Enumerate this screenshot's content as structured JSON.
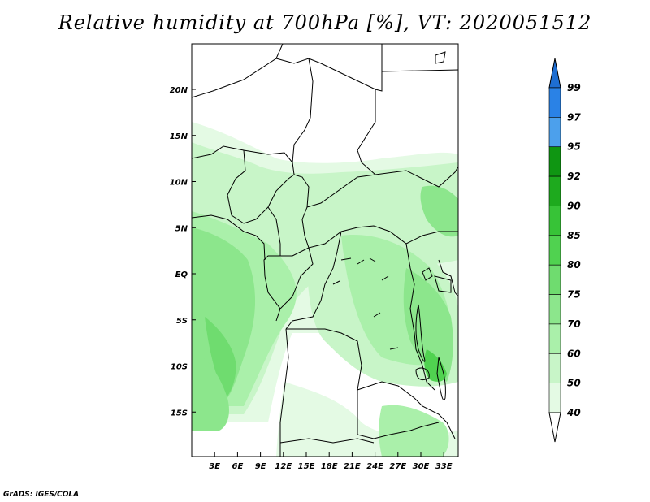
{
  "title": "Relative humidity at 700hPa [%], VT: 2020051512",
  "footer": "GrADS: IGES/COLA",
  "map": {
    "lat_ticks": [
      {
        "label": "20N",
        "lat": 20
      },
      {
        "label": "15N",
        "lat": 15
      },
      {
        "label": "10N",
        "lat": 10
      },
      {
        "label": "5N",
        "lat": 5
      },
      {
        "label": "EQ",
        "lat": 0
      },
      {
        "label": "5S",
        "lat": -5
      },
      {
        "label": "10S",
        "lat": -10
      },
      {
        "label": "15S",
        "lat": -15
      }
    ],
    "lon_ticks": [
      {
        "label": "3E",
        "lon": 3
      },
      {
        "label": "6E",
        "lon": 6
      },
      {
        "label": "9E",
        "lon": 9
      },
      {
        "label": "12E",
        "lon": 12
      },
      {
        "label": "15E",
        "lon": 15
      },
      {
        "label": "18E",
        "lon": 18
      },
      {
        "label": "21E",
        "lon": 21
      },
      {
        "label": "24E",
        "lon": 24
      },
      {
        "label": "27E",
        "lon": 27
      },
      {
        "label": "30E",
        "lon": 30
      },
      {
        "label": "33E",
        "lon": 33
      }
    ]
  },
  "colorbar": {
    "levels": [
      {
        "label": "99",
        "color": "#1e6ed2"
      },
      {
        "label": "97",
        "color": "#2a82e6"
      },
      {
        "label": "95",
        "color": "#4ca0ec"
      },
      {
        "label": "92",
        "color": "#0f9612"
      },
      {
        "label": "90",
        "color": "#1eaa1e"
      },
      {
        "label": "85",
        "color": "#37c337"
      },
      {
        "label": "80",
        "color": "#50d250"
      },
      {
        "label": "75",
        "color": "#6fdc6f"
      },
      {
        "label": "70",
        "color": "#8ce68c"
      },
      {
        "label": "60",
        "color": "#aaf0aa"
      },
      {
        "label": "50",
        "color": "#c8f5c8"
      },
      {
        "label": "40",
        "color": "#e4fae4"
      }
    ],
    "top_arrow_color": "#1e6ed2",
    "bottom_arrow_color": "#ffffff"
  }
}
